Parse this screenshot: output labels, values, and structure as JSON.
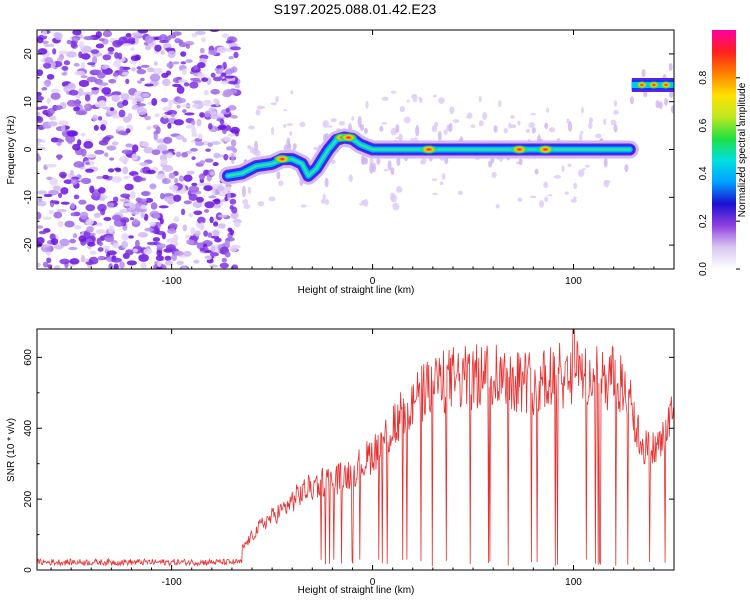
{
  "chart_data": [
    {
      "type": "heatmap",
      "title": "S197.2025.088.01.42.E23",
      "xlabel": "Height of straight line (km)",
      "ylabel": "Frequency (Hz)",
      "xlim": [
        -167,
        150
      ],
      "ylim": [
        -25,
        25
      ],
      "xticks": [
        -100,
        0,
        100
      ],
      "yticks": [
        -20,
        -10,
        0,
        10,
        20
      ],
      "colorbar": {
        "label": "Normalized spectral amplitude",
        "range": [
          0,
          1
        ],
        "ticks": [
          "0.0",
          "0.2",
          "0.4",
          "0.6",
          "0.8"
        ],
        "tick_values": [
          0.0,
          0.2,
          0.4,
          0.6,
          0.8
        ],
        "colors": [
          "#ffffff",
          "#d8c8f0",
          "#9040e0",
          "#1a10d0",
          "#00a0ff",
          "#00e0e0",
          "#20e040",
          "#c0e820",
          "#ffe000",
          "#ff8000",
          "#ff2020",
          "#ff00a0"
        ]
      },
      "noise_region": {
        "x": [
          -167,
          -67
        ],
        "y": [
          -25,
          25
        ]
      },
      "ridge": {
        "x": [
          -72,
          -65,
          -58,
          -50,
          -45,
          -40,
          -35,
          -32,
          -28,
          -25,
          -22,
          -18,
          -14,
          -10,
          -6,
          0,
          10,
          20,
          30,
          40,
          50,
          60,
          70,
          80,
          90,
          100,
          110,
          120,
          128
        ],
        "y": [
          -5.5,
          -5,
          -3.5,
          -3,
          -2,
          -2,
          -3,
          -5.5,
          -4,
          -2,
          0,
          2,
          2.5,
          2.2,
          1,
          0,
          0,
          0,
          0,
          0,
          0,
          0,
          0,
          0,
          0,
          0,
          0,
          0,
          0
        ]
      },
      "ridge_peaks": [
        {
          "x": -45,
          "y": -2
        },
        {
          "x": -15,
          "y": 2.5
        },
        {
          "x": -12,
          "y": 2.5
        },
        {
          "x": 28,
          "y": 0
        },
        {
          "x": 73,
          "y": 0
        },
        {
          "x": 86,
          "y": 0
        }
      ],
      "segment2": {
        "x": [
          129,
          150
        ],
        "y": 13.5,
        "peaks": [
          {
            "x": 134,
            "y": 13.5
          },
          {
            "x": 140,
            "y": 13.5
          },
          {
            "x": 146,
            "y": 13.5
          }
        ]
      }
    },
    {
      "type": "line",
      "title": "",
      "xlabel": "Height of straight line (km)",
      "ylabel": "SNR (10 * v/v)",
      "xlim": [
        -167,
        150
      ],
      "ylim": [
        0,
        680
      ],
      "xticks": [
        -100,
        0,
        100
      ],
      "yticks": [
        0,
        200,
        400,
        600
      ],
      "color": "#e83030",
      "baseline": {
        "x": [
          -167,
          -65
        ],
        "y": 22
      },
      "envelope": {
        "x": [
          -65,
          -55,
          -45,
          -35,
          -25,
          -15,
          -5,
          0,
          10,
          20,
          30,
          40,
          50,
          60,
          70,
          80,
          90,
          100,
          110,
          120,
          128,
          132,
          138,
          144,
          150
        ],
        "y": [
          60,
          130,
          170,
          220,
          250,
          260,
          300,
          330,
          400,
          470,
          520,
          540,
          540,
          560,
          540,
          530,
          540,
          560,
          540,
          540,
          500,
          380,
          330,
          360,
          450
        ]
      },
      "spike": {
        "x": 100,
        "y": 680
      }
    }
  ]
}
